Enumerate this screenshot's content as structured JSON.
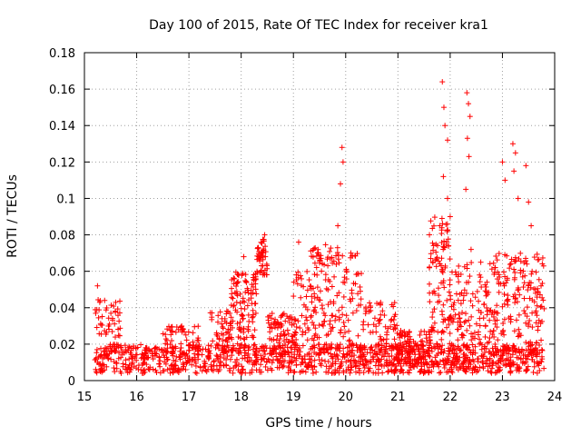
{
  "chart_data": {
    "type": "scatter",
    "title": "Day 100 of 2015, Rate Of TEC Index for receiver kra1",
    "xlabel": "GPS time / hours",
    "ylabel": "ROTI / TECUs",
    "xlim": [
      15,
      24
    ],
    "ylim": [
      0,
      0.18
    ],
    "x_ticks": [
      15,
      16,
      17,
      18,
      19,
      20,
      21,
      22,
      23,
      24
    ],
    "x_tick_labels": [
      "15",
      "16",
      "17",
      "18",
      "19",
      "20",
      "21",
      "22",
      "23",
      "24"
    ],
    "y_ticks": [
      0,
      0.02,
      0.04,
      0.06,
      0.08,
      0.1,
      0.12,
      0.14,
      0.16,
      0.18
    ],
    "y_tick_labels": [
      "0",
      "0.02",
      "0.04",
      "0.06",
      "0.08",
      "0.1",
      "0.12",
      "0.14",
      "0.16",
      "0.18"
    ],
    "grid": true,
    "marker": "+",
    "color": "#ff0000",
    "series": [
      {
        "name": "ROTI",
        "segments": [
          {
            "x0": 15.2,
            "x1": 23.8,
            "baseline": 0.012,
            "spread": 0.008,
            "count": 1100
          },
          {
            "x0": 15.2,
            "x1": 15.7,
            "baseline": 0.03,
            "spread": 0.015,
            "count": 60
          },
          {
            "x0": 16.5,
            "x1": 17.2,
            "baseline": 0.022,
            "spread": 0.008,
            "count": 60
          },
          {
            "x0": 17.4,
            "x1": 17.8,
            "baseline": 0.03,
            "spread": 0.01,
            "count": 40
          },
          {
            "x0": 17.8,
            "x1": 18.3,
            "baseline": 0.035,
            "spread": 0.025,
            "count": 130
          },
          {
            "x0": 18.3,
            "x1": 18.5,
            "baseline": 0.068,
            "spread": 0.01,
            "count": 50
          },
          {
            "x0": 18.5,
            "x1": 19.0,
            "baseline": 0.025,
            "spread": 0.012,
            "count": 80
          },
          {
            "x0": 19.0,
            "x1": 19.3,
            "baseline": 0.04,
            "spread": 0.02,
            "count": 40
          },
          {
            "x0": 19.3,
            "x1": 19.9,
            "baseline": 0.045,
            "spread": 0.03,
            "count": 120
          },
          {
            "x0": 19.9,
            "x1": 20.3,
            "baseline": 0.04,
            "spread": 0.03,
            "count": 60
          },
          {
            "x0": 20.3,
            "x1": 21.0,
            "baseline": 0.025,
            "spread": 0.018,
            "count": 90
          },
          {
            "x0": 21.0,
            "x1": 21.6,
            "baseline": 0.018,
            "spread": 0.01,
            "count": 90
          },
          {
            "x0": 21.6,
            "x1": 22.0,
            "baseline": 0.05,
            "spread": 0.04,
            "count": 120
          },
          {
            "x0": 22.0,
            "x1": 22.8,
            "baseline": 0.035,
            "spread": 0.03,
            "count": 160
          },
          {
            "x0": 22.8,
            "x1": 23.8,
            "baseline": 0.04,
            "spread": 0.03,
            "count": 200
          }
        ],
        "spikes": [
          {
            "x": 15.25,
            "y": 0.052
          },
          {
            "x": 18.05,
            "y": 0.068
          },
          {
            "x": 18.45,
            "y": 0.08
          },
          {
            "x": 19.1,
            "y": 0.076
          },
          {
            "x": 19.85,
            "y": 0.085
          },
          {
            "x": 19.93,
            "y": 0.128
          },
          {
            "x": 19.95,
            "y": 0.12
          },
          {
            "x": 19.9,
            "y": 0.108
          },
          {
            "x": 20.1,
            "y": 0.07
          },
          {
            "x": 21.85,
            "y": 0.164
          },
          {
            "x": 21.88,
            "y": 0.15
          },
          {
            "x": 21.9,
            "y": 0.14
          },
          {
            "x": 21.95,
            "y": 0.132
          },
          {
            "x": 21.87,
            "y": 0.112
          },
          {
            "x": 21.8,
            "y": 0.085
          },
          {
            "x": 21.95,
            "y": 0.1
          },
          {
            "x": 22.0,
            "y": 0.09
          },
          {
            "x": 22.32,
            "y": 0.158
          },
          {
            "x": 22.35,
            "y": 0.152
          },
          {
            "x": 22.38,
            "y": 0.145
          },
          {
            "x": 22.33,
            "y": 0.133
          },
          {
            "x": 22.36,
            "y": 0.123
          },
          {
            "x": 22.3,
            "y": 0.105
          },
          {
            "x": 22.4,
            "y": 0.072
          },
          {
            "x": 23.0,
            "y": 0.12
          },
          {
            "x": 23.05,
            "y": 0.11
          },
          {
            "x": 23.2,
            "y": 0.13
          },
          {
            "x": 23.25,
            "y": 0.125
          },
          {
            "x": 23.22,
            "y": 0.115
          },
          {
            "x": 23.3,
            "y": 0.1
          },
          {
            "x": 23.45,
            "y": 0.118
          },
          {
            "x": 23.5,
            "y": 0.098
          },
          {
            "x": 23.55,
            "y": 0.085
          }
        ]
      }
    ]
  }
}
